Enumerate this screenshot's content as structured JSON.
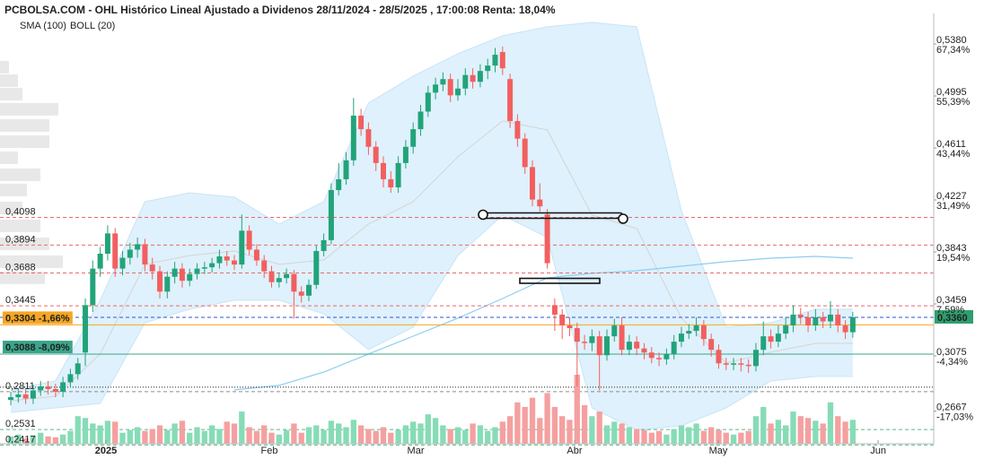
{
  "chart_data": {
    "type": "candlestick",
    "title": "PCBOLSA.COM - OHL Histórico Lineal Ajustado a Dividenos 28/11/2024 - 28/5/2025 , 17:00:08 Renta: 18,04%",
    "up_color": "#22a37a",
    "down_color": "#f25f5f",
    "volume_up_color": "#86dcb6",
    "volume_down_color": "#f5a0a0",
    "open": [
      0.275,
      0.277,
      0.279,
      0.276,
      0.282,
      0.285,
      0.283,
      0.281,
      0.288,
      0.294,
      0.31,
      0.345,
      0.372,
      0.383,
      0.398,
      0.372,
      0.38,
      0.386,
      0.39,
      0.375,
      0.37,
      0.355,
      0.366,
      0.372,
      0.363,
      0.368,
      0.372,
      0.373,
      0.376,
      0.381,
      0.378,
      0.375,
      0.4,
      0.386,
      0.378,
      0.37,
      0.362,
      0.365,
      0.368,
      0.355,
      0.352,
      0.36,
      0.385,
      0.393,
      0.43,
      0.438,
      0.452,
      0.485,
      0.475,
      0.462,
      0.45,
      0.438,
      0.432,
      0.45,
      0.462,
      0.475,
      0.488,
      0.502,
      0.508,
      0.512,
      0.5,
      0.505,
      0.515,
      0.51,
      0.518,
      0.522,
      0.532,
      0.512,
      0.481,
      0.468,
      0.447,
      0.423,
      0.412,
      0.345,
      0.338,
      0.33,
      0.328,
      0.318,
      0.317,
      0.322,
      0.308,
      0.322,
      0.33,
      0.312,
      0.318,
      0.313,
      0.31,
      0.306,
      0.305,
      0.309,
      0.318,
      0.324,
      0.326,
      0.33,
      0.32,
      0.312,
      0.302,
      0.301,
      0.302,
      0.301,
      0.3,
      0.312,
      0.322,
      0.318,
      0.324,
      0.33,
      0.338,
      0.336,
      0.33,
      0.336,
      0.333,
      0.338,
      0.33,
      0.325
    ],
    "high": [
      0.281,
      0.283,
      0.283,
      0.286,
      0.289,
      0.289,
      0.287,
      0.292,
      0.298,
      0.306,
      0.35,
      0.378,
      0.388,
      0.404,
      0.402,
      0.385,
      0.391,
      0.395,
      0.394,
      0.38,
      0.374,
      0.37,
      0.377,
      0.376,
      0.372,
      0.376,
      0.377,
      0.38,
      0.386,
      0.385,
      0.382,
      0.412,
      0.404,
      0.39,
      0.382,
      0.374,
      0.369,
      0.372,
      0.371,
      0.359,
      0.364,
      0.389,
      0.398,
      0.435,
      0.45,
      0.458,
      0.498,
      0.49,
      0.48,
      0.466,
      0.455,
      0.444,
      0.455,
      0.467,
      0.48,
      0.493,
      0.507,
      0.513,
      0.517,
      0.516,
      0.512,
      0.52,
      0.52,
      0.523,
      0.527,
      0.535,
      0.536,
      0.516,
      0.486,
      0.472,
      0.452,
      0.435,
      0.416,
      0.35,
      0.342,
      0.336,
      0.332,
      0.323,
      0.327,
      0.326,
      0.327,
      0.335,
      0.336,
      0.323,
      0.322,
      0.317,
      0.314,
      0.31,
      0.313,
      0.323,
      0.329,
      0.331,
      0.336,
      0.334,
      0.324,
      0.316,
      0.306,
      0.306,
      0.306,
      0.305,
      0.317,
      0.333,
      0.327,
      0.33,
      0.336,
      0.345,
      0.343,
      0.34,
      0.342,
      0.34,
      0.348,
      0.342,
      0.334,
      0.34
    ],
    "low": [
      0.271,
      0.273,
      0.272,
      0.272,
      0.278,
      0.279,
      0.277,
      0.277,
      0.284,
      0.29,
      0.3,
      0.34,
      0.366,
      0.378,
      0.366,
      0.367,
      0.375,
      0.38,
      0.37,
      0.364,
      0.35,
      0.35,
      0.361,
      0.358,
      0.359,
      0.364,
      0.368,
      0.369,
      0.372,
      0.374,
      0.371,
      0.372,
      0.382,
      0.374,
      0.365,
      0.358,
      0.358,
      0.361,
      0.335,
      0.347,
      0.348,
      0.357,
      0.381,
      0.39,
      0.426,
      0.434,
      0.448,
      0.47,
      0.456,
      0.444,
      0.432,
      0.428,
      0.428,
      0.446,
      0.457,
      0.47,
      0.484,
      0.497,
      0.503,
      0.495,
      0.496,
      0.5,
      0.505,
      0.506,
      0.512,
      0.517,
      0.515,
      0.476,
      0.462,
      0.442,
      0.418,
      0.414,
      0.372,
      0.326,
      0.32,
      0.322,
      0.285,
      0.312,
      0.311,
      0.282,
      0.304,
      0.318,
      0.308,
      0.308,
      0.308,
      0.305,
      0.302,
      0.3,
      0.301,
      0.305,
      0.314,
      0.32,
      0.322,
      0.315,
      0.307,
      0.298,
      0.297,
      0.297,
      0.296,
      0.295,
      0.296,
      0.308,
      0.313,
      0.314,
      0.32,
      0.325,
      0.331,
      0.325,
      0.326,
      0.328,
      0.328,
      0.325,
      0.32,
      0.321
    ],
    "close": [
      0.277,
      0.279,
      0.276,
      0.282,
      0.285,
      0.283,
      0.281,
      0.288,
      0.294,
      0.302,
      0.345,
      0.372,
      0.383,
      0.398,
      0.372,
      0.38,
      0.386,
      0.39,
      0.375,
      0.37,
      0.355,
      0.366,
      0.372,
      0.363,
      0.368,
      0.372,
      0.373,
      0.376,
      0.381,
      0.378,
      0.375,
      0.4,
      0.386,
      0.378,
      0.37,
      0.362,
      0.365,
      0.368,
      0.355,
      0.352,
      0.36,
      0.385,
      0.393,
      0.43,
      0.438,
      0.452,
      0.485,
      0.475,
      0.462,
      0.45,
      0.438,
      0.432,
      0.45,
      0.462,
      0.475,
      0.488,
      0.502,
      0.508,
      0.512,
      0.5,
      0.505,
      0.515,
      0.51,
      0.518,
      0.522,
      0.53,
      0.52,
      0.481,
      0.468,
      0.447,
      0.423,
      0.418,
      0.376,
      0.338,
      0.33,
      0.328,
      0.318,
      0.317,
      0.322,
      0.308,
      0.322,
      0.33,
      0.312,
      0.318,
      0.313,
      0.31,
      0.306,
      0.305,
      0.309,
      0.318,
      0.324,
      0.326,
      0.33,
      0.32,
      0.312,
      0.302,
      0.301,
      0.302,
      0.301,
      0.3,
      0.312,
      0.322,
      0.318,
      0.324,
      0.33,
      0.338,
      0.336,
      0.33,
      0.336,
      0.333,
      0.338,
      0.33,
      0.325,
      0.336
    ],
    "volume": [
      8,
      10,
      6,
      9,
      12,
      8,
      7,
      10,
      14,
      30,
      28,
      22,
      20,
      25,
      24,
      12,
      15,
      18,
      14,
      16,
      20,
      15,
      22,
      25,
      12,
      18,
      14,
      20,
      16,
      24,
      22,
      35,
      18,
      14,
      20,
      12,
      10,
      15,
      22,
      12,
      18,
      20,
      15,
      25,
      22,
      18,
      26,
      20,
      16,
      14,
      18,
      12,
      15,
      20,
      24,
      22,
      32,
      28,
      20,
      16,
      18,
      15,
      22,
      20,
      14,
      18,
      24,
      30,
      45,
      40,
      50,
      28,
      55,
      40,
      30,
      26,
      75,
      42,
      30,
      35,
      20,
      24,
      22,
      18,
      16,
      15,
      12,
      14,
      10,
      16,
      20,
      18,
      22,
      14,
      18,
      15,
      12,
      10,
      12,
      14,
      30,
      40,
      22,
      26,
      20,
      35,
      30,
      28,
      25,
      22,
      45,
      30,
      24,
      26
    ],
    "sma": {
      "name": "SMA (100)",
      "color": "#8ecdf2",
      "x": [
        30,
        36,
        42,
        48,
        54,
        60,
        66,
        72,
        78,
        84,
        90,
        96,
        102,
        108,
        113
      ],
      "values": [
        0.2824,
        0.2857,
        0.2956,
        0.3089,
        0.3221,
        0.3354,
        0.3499,
        0.3652,
        0.3685,
        0.3704,
        0.3738,
        0.3771,
        0.3797,
        0.381,
        0.3797
      ]
    },
    "bollinger": {
      "name": "BOLL (20)",
      "color": "#d4d4d4",
      "fill": "#d9eefb",
      "x": [
        0,
        6,
        12,
        18,
        24,
        30,
        36,
        42,
        48,
        54,
        60,
        66,
        72,
        78,
        84,
        90,
        96,
        102,
        108,
        113
      ],
      "upper": [
        0.2824,
        0.289,
        0.3486,
        0.4214,
        0.428,
        0.4248,
        0.4049,
        0.4214,
        0.4943,
        0.5142,
        0.5307,
        0.544,
        0.5506,
        0.5539,
        0.5506,
        0.4148,
        0.3287,
        0.332,
        0.342,
        0.342
      ],
      "middle": [
        0.2744,
        0.2777,
        0.3089,
        0.3751,
        0.3817,
        0.385,
        0.3751,
        0.3784,
        0.4049,
        0.4214,
        0.4546,
        0.481,
        0.4744,
        0.4115,
        0.4016,
        0.3354,
        0.3022,
        0.3102,
        0.3168,
        0.3168
      ],
      "lower": [
        0.2658,
        0.2691,
        0.2724,
        0.332,
        0.342,
        0.3486,
        0.3486,
        0.3387,
        0.3122,
        0.3287,
        0.3817,
        0.4115,
        0.395,
        0.2691,
        0.2526,
        0.2559,
        0.2691,
        0.289,
        0.2923,
        0.2923
      ]
    },
    "volume_profile": {
      "color": "#e8e8e8",
      "levels": [
        0.5208,
        0.5108,
        0.5009,
        0.4897,
        0.4777,
        0.4658,
        0.4539,
        0.4413,
        0.4301,
        0.4168,
        0.4036,
        0.3903,
        0.3771,
        0.3652
      ],
      "values": [
        10,
        20,
        25,
        65,
        55,
        55,
        20,
        45,
        30,
        25,
        45,
        55,
        70,
        50
      ]
    },
    "levels": [
      {
        "value": 0.4098,
        "label": "0,4098",
        "color": "#e86a6a",
        "dash": "4,3"
      },
      {
        "value": 0.3894,
        "label": "0,3894",
        "color": "#e86a6a",
        "dash": "4,3"
      },
      {
        "value": 0.3688,
        "label": "0,3688",
        "color": "#e86a6a",
        "dash": "4,3"
      },
      {
        "value": 0.3445,
        "label": "0,3445",
        "color": "#e86a6a",
        "dash": "4,3"
      },
      {
        "value": 0.3304,
        "label": "0,3304 -1,66%",
        "color": "#f5a623",
        "label_background": "#f5a623"
      },
      {
        "value": 0.3088,
        "label": "0,3088 -8,09%",
        "color": "#3aa58a",
        "label_background": "#3aa58a"
      },
      {
        "value": 0.2844,
        "color": "#222222",
        "dash": "1,2"
      },
      {
        "value": 0.2811,
        "label": "0,2811",
        "color": "#8a8a8a",
        "dash": "4,3"
      },
      {
        "value": 0.2531,
        "label": "0,2531",
        "color": "#5cb88a",
        "dash": "4,3"
      },
      {
        "value": 0.2417,
        "label": "0,2417",
        "color": "#5cb88a",
        "dash": "4,3"
      }
    ],
    "last_price": {
      "value": 0.336,
      "label": "0,3360",
      "color": "#2f55d4",
      "label_background": "#2e9e6e"
    },
    "xlim": [
      -1.45,
      123.86
    ],
    "xticks": [
      {
        "value": 12.77,
        "label": "2025"
      },
      {
        "value": 34.7,
        "label": "Feb"
      },
      {
        "value": 54.34,
        "label": "Mar"
      },
      {
        "value": 75.66,
        "label": "Abr"
      },
      {
        "value": 94.94,
        "label": "May"
      },
      {
        "value": 116.4,
        "label": "Jun"
      }
    ],
    "ylim": [
      0.2426,
      0.5605
    ],
    "yticks": [
      {
        "value": 0.538,
        "label": "0,5380"
      },
      {
        "value": 0.4995,
        "label": "0,4995"
      },
      {
        "value": 0.4611,
        "label": "0,4611"
      },
      {
        "value": 0.4227,
        "label": "0,4227"
      },
      {
        "value": 0.3843,
        "label": "0,3843"
      },
      {
        "value": 0.3459,
        "label": "0,3459"
      },
      {
        "value": 0.3075,
        "label": "0,3075"
      },
      {
        "value": 0.2667,
        "label": "0,2667"
      }
    ],
    "y2lim": [
      -24.54,
      74.34
    ],
    "y2ticks": [
      {
        "value": 67.34,
        "label": "67,34%"
      },
      {
        "value": 55.39,
        "label": "55,39%"
      },
      {
        "value": 43.44,
        "label": "43,44%"
      },
      {
        "value": 31.49,
        "label": "31,49%"
      },
      {
        "value": 19.54,
        "label": "19,54%"
      },
      {
        "value": 7.59,
        "label": "7,59%"
      },
      {
        "value": -4.34,
        "label": "-4,34%"
      },
      {
        "value": -17.03,
        "label": "-17,03%"
      }
    ]
  }
}
